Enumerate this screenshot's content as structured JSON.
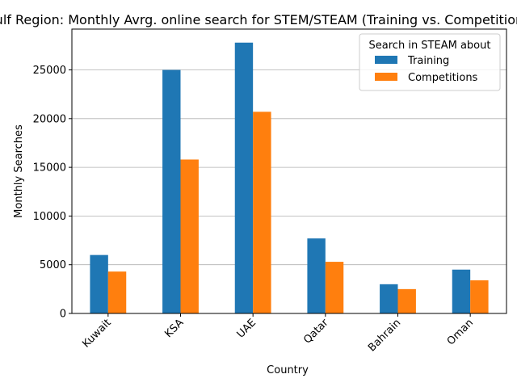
{
  "chart_data": {
    "type": "bar",
    "title": "Gulf Region: Monthly Avrg. online search for STEM/STEAM (Training vs. Competitions)",
    "xlabel": "Country",
    "ylabel": "Monthly Searches",
    "categories": [
      "Kuwait",
      "KSA",
      "UAE",
      "Qatar",
      "Bahrain",
      "Oman"
    ],
    "series": [
      {
        "name": "Training",
        "values": [
          6000,
          25000,
          27800,
          7700,
          3000,
          4500
        ],
        "color": "#1f77b4"
      },
      {
        "name": "Competitions",
        "values": [
          4300,
          15800,
          20700,
          5300,
          2500,
          3400
        ],
        "color": "#ff7f0e"
      }
    ],
    "ylim": [
      0,
      29190
    ],
    "yticks": [
      0,
      5000,
      10000,
      15000,
      20000,
      25000
    ],
    "grid": "y",
    "legend": {
      "title": "Search in STEAM about",
      "position": "top-right"
    },
    "xtick_rotation_deg": 45
  }
}
